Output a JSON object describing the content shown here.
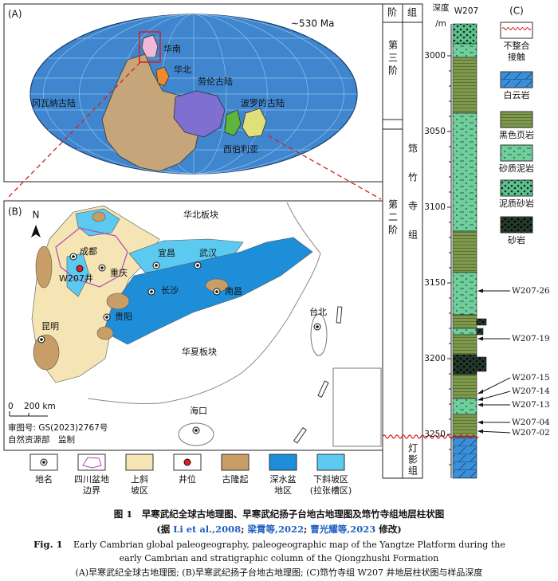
{
  "panel_a": {
    "label": "(A)",
    "age": "~530 Ma",
    "labels": [
      "华南",
      "华北",
      "劳伦古陆",
      "冈瓦纳古陆",
      "波罗的古陆",
      "西伯利亚"
    ]
  },
  "panel_b": {
    "label": "(B)",
    "north": "N",
    "places": [
      "华北板块",
      "成都",
      "宜昌",
      "武汉",
      "W207井",
      "重庆",
      "长沙",
      "南昌",
      "贵阳",
      "华夏板块",
      "台北",
      "昆明",
      "海口"
    ],
    "scale_zero": "0",
    "scale_km": "200 km",
    "approval": "审图号: GS(2023)2767号",
    "issuer": "自然资源部　监制"
  },
  "legend_b": [
    [
      "地名"
    ],
    [
      "四川盆地",
      "边界"
    ],
    [
      "上斜",
      "坡区"
    ],
    [
      "井位"
    ],
    [
      "古隆起"
    ],
    [
      "深水盆",
      "地区"
    ],
    [
      "下斜坡区",
      "(拉张槽区)"
    ]
  ],
  "panel_c": {
    "label": "(C)",
    "stage_header": "阶",
    "formation_header": "组",
    "depth_header": [
      "深度",
      "/m"
    ],
    "well": "W207",
    "stages": [
      "第三阶",
      "第二阶"
    ],
    "formations": [
      "筇竹寺组",
      "灯影组"
    ],
    "depth_ticks": [
      3000,
      3050,
      3100,
      3150,
      3200,
      3250
    ],
    "samples": [
      "W207-26",
      "W207-19",
      "W207-15",
      "W207-14",
      "W207-13",
      "W207-04",
      "W207-02"
    ],
    "legend": [
      [
        "不整合",
        "接触"
      ],
      [
        "白云岩"
      ],
      [
        "黑色页岩"
      ],
      [
        "砂质泥岩"
      ],
      [
        "泥质砂岩"
      ],
      [
        "砂岩"
      ]
    ]
  },
  "caption": {
    "cn_title": "图 1　早寒武纪全球古地理图、早寒武纪扬子台地古地理图及筇竹寺组地层柱状图",
    "cn_source": [
      "(据 ",
      "Li et al.,2008",
      "; ",
      "梁霄等,2022",
      "; ",
      "曹光耀等,2023",
      " 修改)"
    ],
    "en_label": "Fig. 1",
    "en_lines": [
      "Early Cambrian global paleogeography, paleogeographic map of the Yangtze Platform during the",
      "early Cambrian and stratigraphic column of the Qiongzhushi Formation"
    ],
    "cn_panels": "(A)早寒武纪全球古地理图; (B)早寒武纪扬子台地古地理图; (C)筇竹寺组 W207 井地层柱状图与样品深度"
  }
}
